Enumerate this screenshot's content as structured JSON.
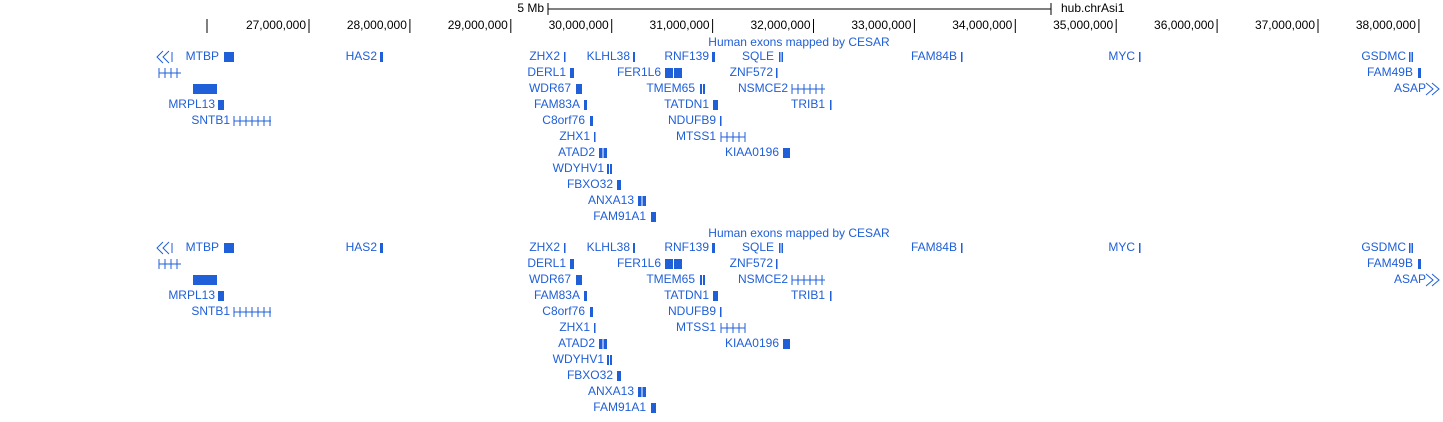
{
  "ruler": {
    "scale_label": "5 Mb",
    "chrom": "hub.chrAsi1",
    "ticks": [
      "27,000,000",
      "28,000,000",
      "29,000,000",
      "30,000,000",
      "31,000,000",
      "32,000,000",
      "33,000,000",
      "34,000,000",
      "35,000,000",
      "36,000,000",
      "37,000,000",
      "38,000,000"
    ]
  },
  "tracks": [
    {
      "title": "Human exons mapped by CESAR",
      "genes": [
        "MTBP",
        "HAS2",
        "ZHX2",
        "KLHL38",
        "RNF139",
        "SQLE",
        "FAM84B",
        "MYC",
        "GSDMC",
        "DERL1",
        "FER1L6",
        "ZNF572",
        "FAM49B",
        "WDR67",
        "TMEM65",
        "NSMCE2",
        "ASAP",
        "MRPL13",
        "FAM83A",
        "TATDN1",
        "TRIB1",
        "SNTB1",
        "C8orf76",
        "NDUFB9",
        "ZHX1",
        "MTSS1",
        "ATAD2",
        "KIAA0196",
        "WDYHV1",
        "FBXO32",
        "ANXA13",
        "FAM91A1"
      ]
    },
    {
      "title": "Human exons mapped by CESAR",
      "genes": [
        "MTBP",
        "HAS2",
        "ZHX2",
        "KLHL38",
        "RNF139",
        "SQLE",
        "FAM84B",
        "MYC",
        "GSDMC",
        "DERL1",
        "FER1L6",
        "ZNF572",
        "FAM49B",
        "WDR67",
        "TMEM65",
        "NSMCE2",
        "ASAP",
        "MRPL13",
        "FAM83A",
        "TATDN1",
        "TRIB1",
        "SNTB1",
        "C8orf76",
        "NDUFB9",
        "ZHX1",
        "MTSS1",
        "ATAD2",
        "KIAA0196",
        "WDYHV1",
        "FBXO32",
        "ANXA13",
        "FAM91A1"
      ]
    }
  ]
}
